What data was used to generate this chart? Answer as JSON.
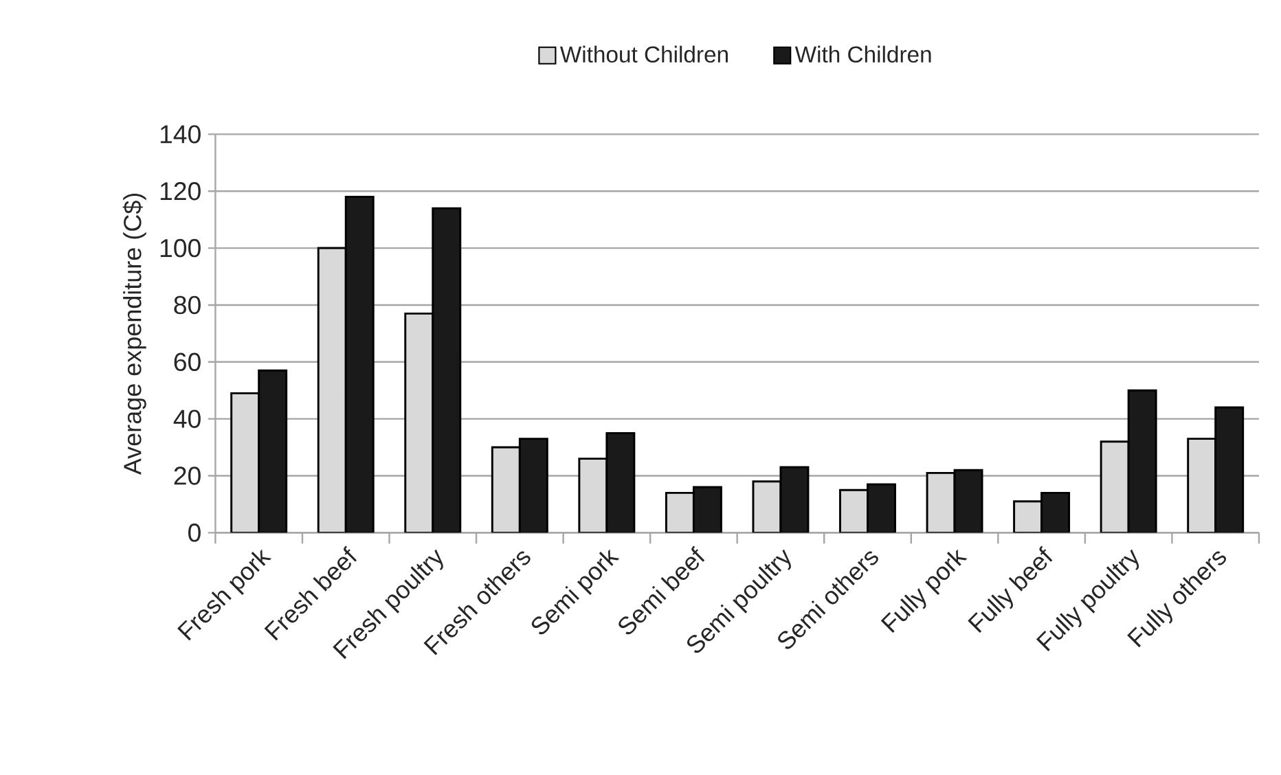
{
  "chart_data": {
    "type": "bar",
    "ylabel": "Average expenditure (C$)",
    "categories": [
      "Fresh pork",
      "Fresh beef",
      "Fresh poultry",
      "Fresh others",
      "Semi pork",
      "Semi beef",
      "Semi poultry",
      "Semi others",
      "Fully pork",
      "Fully beef",
      "Fully poultry",
      "Fully others"
    ],
    "series": [
      {
        "name": "Without Children",
        "color": "#d9d9d9",
        "values": [
          49,
          100,
          77,
          30,
          26,
          14,
          18,
          15,
          21,
          11,
          32,
          33
        ]
      },
      {
        "name": "With Children",
        "color": "#1a1a1a",
        "values": [
          57,
          118,
          114,
          33,
          35,
          16,
          23,
          17,
          22,
          14,
          50,
          44
        ]
      }
    ],
    "ylim": [
      0,
      140
    ],
    "yticks": [
      0,
      20,
      40,
      60,
      80,
      100,
      120,
      140
    ],
    "grid": "y",
    "legend": "top"
  }
}
